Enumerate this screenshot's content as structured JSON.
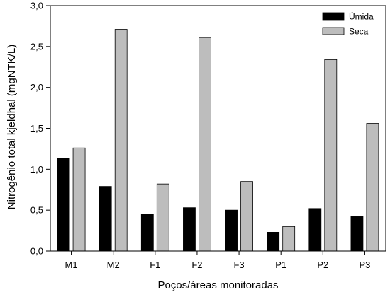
{
  "chart_data": {
    "type": "bar",
    "categories": [
      "M1",
      "M2",
      "F1",
      "F2",
      "F3",
      "P1",
      "P2",
      "P3"
    ],
    "series": [
      {
        "name": "Úmida",
        "color": "#000000",
        "values": [
          1.13,
          0.79,
          0.45,
          0.53,
          0.5,
          0.23,
          0.52,
          0.42
        ]
      },
      {
        "name": "Seca",
        "color": "#bdbdbd",
        "values": [
          1.26,
          2.71,
          0.82,
          2.61,
          0.85,
          0.3,
          2.34,
          1.56
        ]
      }
    ],
    "title": "",
    "xlabel": "Poços/áreas monitoradas",
    "ylabel": "Nitrogênio total kjeldhal (mgNTK/L)",
    "ylim": [
      0,
      3.0
    ],
    "yticks": [
      "0,0",
      "0,5",
      "1,0",
      "1,5",
      "2,0",
      "2,5",
      "3,0"
    ],
    "grid": false,
    "legend_position": "top-right"
  }
}
